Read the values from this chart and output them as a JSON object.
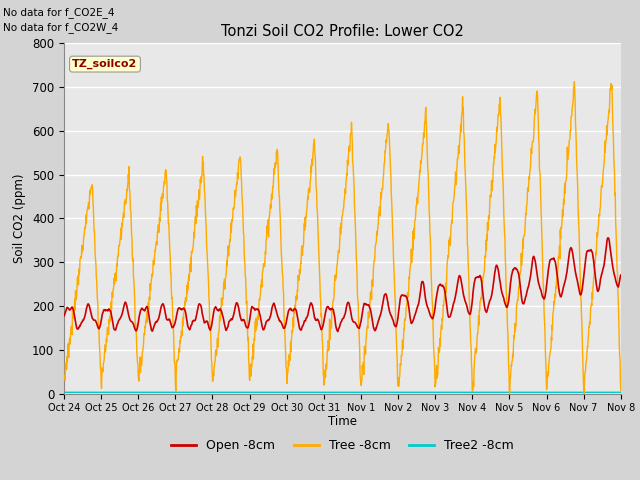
{
  "title": "Tonzi Soil CO2 Profile: Lower CO2",
  "ylabel": "Soil CO2 (ppm)",
  "xlabel": "Time",
  "annotation_lines": [
    "No data for f_CO2E_4",
    "No data for f_CO2W_4"
  ],
  "dataset_label": "TZ_soilco2",
  "legend_entries": [
    "Open -8cm",
    "Tree -8cm",
    "Tree2 -8cm"
  ],
  "open_color": "#cc0000",
  "tree_color": "#ffaa00",
  "tree2_color": "#00cccc",
  "ylim": [
    0,
    800
  ],
  "yticks": [
    0,
    100,
    200,
    300,
    400,
    500,
    600,
    700,
    800
  ],
  "fig_bg": "#d4d4d4",
  "plot_bg": "#e8e8e8",
  "tick_labels": [
    "Oct 24",
    "Oct 25",
    "Oct 26",
    "Oct 27",
    "Oct 28",
    "Oct 29",
    "Oct 30",
    "Oct 31",
    "Nov 1",
    "Nov 2",
    "Nov 3",
    "Nov 4",
    "Nov 5",
    "Nov 6",
    "Nov 7",
    "Nov 8"
  ],
  "n_points": 1500
}
